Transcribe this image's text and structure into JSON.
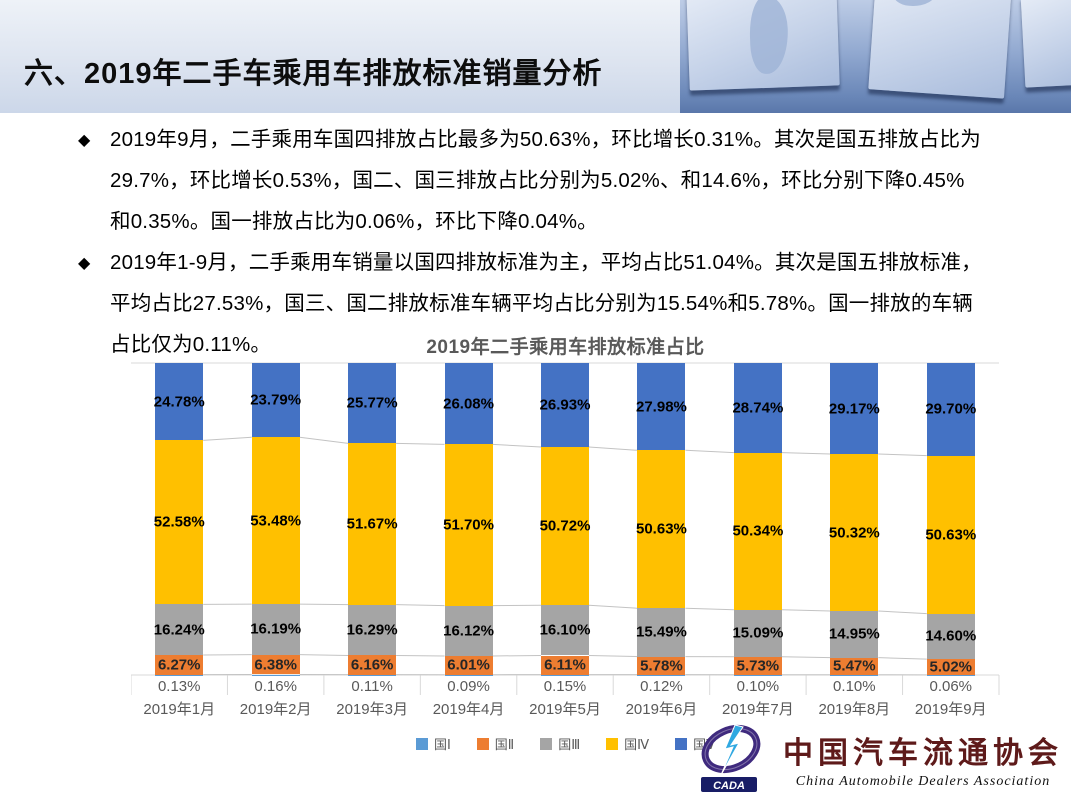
{
  "header": {
    "title": "六、2019年二手车乘用车排放标准销量分析"
  },
  "bullets": [
    {
      "marker": "◆",
      "lines": [
        "2019年9月，二手乘用车国四排放占比最多为50.63%，环比增长0.31%。其次是国五排放占比为",
        "29.7%，环比增长0.53%，国二、国三排放占比分别为5.02%、和14.6%，环比分别下降0.45%",
        "和0.35%。国一排放占比为0.06%，环比下降0.04%。"
      ]
    },
    {
      "marker": "◆",
      "lines": [
        "2019年1-9月，二手乘用车销量以国四排放标准为主，平均占比51.04%。其次是国五排放标准，",
        "平均占比27.53%，国三、国二排放标准车辆平均占比分别为15.54%和5.78%。国一排放的车辆",
        "占比仅为0.11%。"
      ]
    }
  ],
  "chart_data": {
    "type": "bar",
    "stacked": "percent",
    "title": "2019年二手乘用车排放标准占比",
    "categories": [
      "2019年1月",
      "2019年2月",
      "2019年3月",
      "2019年4月",
      "2019年5月",
      "2019年6月",
      "2019年7月",
      "2019年8月",
      "2019年9月"
    ],
    "series": [
      {
        "name": "国Ⅰ",
        "color": "#5B9BD5",
        "values": [
          0.13,
          0.16,
          0.11,
          0.09,
          0.15,
          0.12,
          0.1,
          0.1,
          0.06
        ]
      },
      {
        "name": "国Ⅱ",
        "color": "#ED7D31",
        "values": [
          6.27,
          6.38,
          6.16,
          6.01,
          6.11,
          5.78,
          5.73,
          5.47,
          5.02
        ]
      },
      {
        "name": "国Ⅲ",
        "color": "#A5A5A5",
        "values": [
          16.24,
          16.19,
          16.29,
          16.12,
          16.1,
          15.49,
          15.09,
          14.95,
          14.6
        ]
      },
      {
        "name": "国Ⅳ",
        "color": "#FFC000",
        "values": [
          52.58,
          53.48,
          51.67,
          51.7,
          50.72,
          50.63,
          50.34,
          50.32,
          50.63
        ]
      },
      {
        "name": "国Ⅴ",
        "color": "#4472C4",
        "values": [
          24.78,
          23.79,
          25.77,
          26.08,
          26.93,
          27.98,
          28.74,
          29.17,
          29.7
        ]
      }
    ],
    "label_format": "0.00%",
    "ylim": [
      0,
      100
    ],
    "grid": false,
    "legend_position": "bottom",
    "series_line_color": "#c3c3c3",
    "axis_color": "#d9d9d9"
  },
  "logo": {
    "abbr": "CADA",
    "cn": "中国汽车流通协会",
    "en": "China  Automobile  Dealers  Association"
  }
}
